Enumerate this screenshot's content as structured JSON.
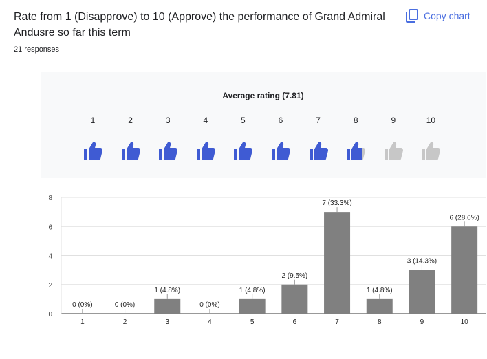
{
  "question": {
    "title": "Rate from 1 (Disapprove) to 10 (Approve) the performance of Grand Admiral Andusre so far this term",
    "responses": "21 responses"
  },
  "toolbar": {
    "copy_label": "Copy chart",
    "copy_icon": "copy-icon"
  },
  "rating": {
    "average_label": "Average rating (7.81)",
    "average": 7.81,
    "scale": [
      "1",
      "2",
      "3",
      "4",
      "5",
      "6",
      "7",
      "8",
      "9",
      "10"
    ],
    "icon": "thumbs-up-icon",
    "active_color": "#3f5bd3",
    "inactive_color": "#c7c7c7"
  },
  "chart_data": {
    "type": "bar",
    "categories": [
      "1",
      "2",
      "3",
      "4",
      "5",
      "6",
      "7",
      "8",
      "9",
      "10"
    ],
    "values": [
      0,
      0,
      1,
      0,
      1,
      2,
      7,
      1,
      3,
      6
    ],
    "labels": [
      "0 (0%)",
      "0 (0%)",
      "1 (4.8%)",
      "0 (0%)",
      "1 (4.8%)",
      "2 (9.5%)",
      "7 (33.3%)",
      "1 (4.8%)",
      "3 (14.3%)",
      "6 (28.6%)"
    ],
    "yticks": [
      "0",
      "2",
      "4",
      "6",
      "8"
    ],
    "ylim": [
      0,
      8
    ],
    "grid": true,
    "bar_color": "#808080"
  }
}
